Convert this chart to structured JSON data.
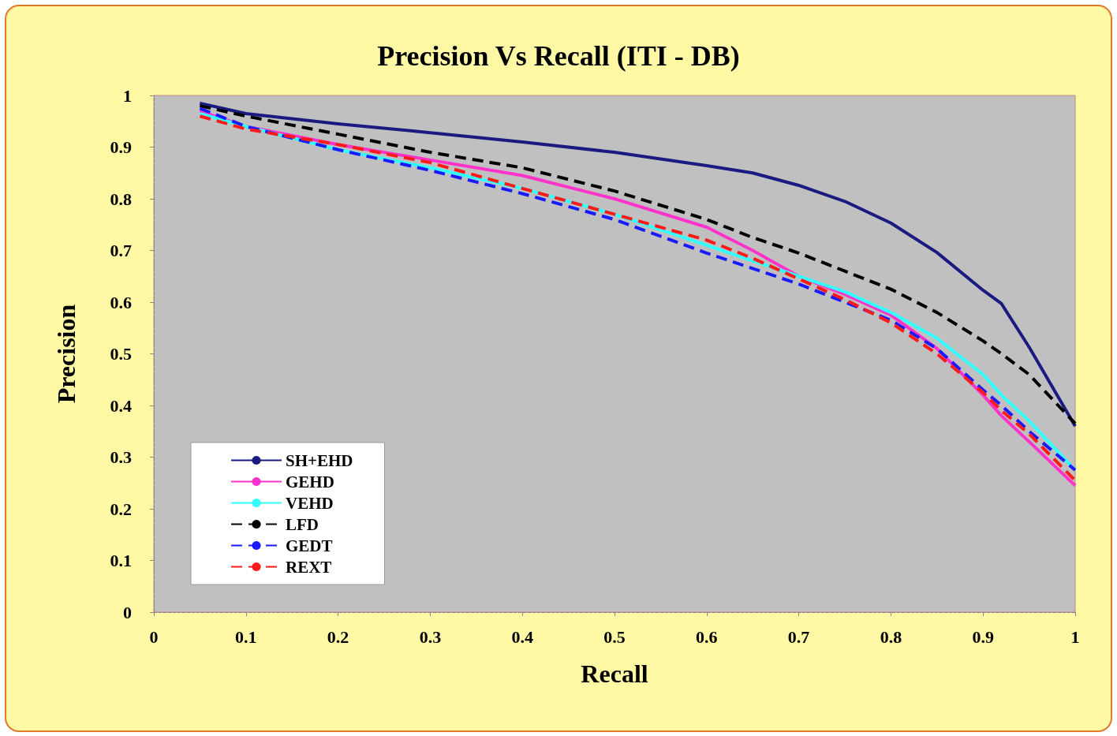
{
  "chart_data": {
    "type": "line",
    "title": "Precision Vs Recall (ITI - DB)",
    "xlabel": "Recall",
    "ylabel": "Precision",
    "x": [
      0.05,
      0.1,
      0.2,
      0.3,
      0.4,
      0.5,
      0.6,
      0.65,
      0.7,
      0.75,
      0.8,
      0.85,
      0.9,
      0.92,
      0.95,
      1.0
    ],
    "xlim": [
      0,
      1
    ],
    "xticks": [
      0,
      0.1,
      0.2,
      0.3,
      0.4,
      0.5,
      0.6,
      0.7,
      0.8,
      0.9,
      1
    ],
    "ylim": [
      0,
      1
    ],
    "yticks": [
      0,
      0.1,
      0.2,
      0.3,
      0.4,
      0.5,
      0.6,
      0.7,
      0.8,
      0.9,
      1
    ],
    "grid": false,
    "legend": "bottom left",
    "marker": "none",
    "series": [
      {
        "name": "SH+EHD",
        "color": "#1a1a80",
        "line_style": "solid",
        "values": [
          0.985,
          0.965,
          0.945,
          0.928,
          0.91,
          0.89,
          0.864,
          0.85,
          0.826,
          0.795,
          0.753,
          0.696,
          0.623,
          0.597,
          0.513,
          0.36
        ]
      },
      {
        "name": "GEHD",
        "color": "#ff33cc",
        "line_style": "solid",
        "values": [
          0.97,
          0.94,
          0.905,
          0.875,
          0.845,
          0.8,
          0.745,
          0.7,
          0.65,
          0.615,
          0.575,
          0.51,
          0.42,
          0.38,
          0.33,
          0.245
        ]
      },
      {
        "name": "VEHD",
        "color": "#33ffff",
        "line_style": "solid",
        "values": [
          0.965,
          0.94,
          0.895,
          0.86,
          0.82,
          0.77,
          0.71,
          0.68,
          0.65,
          0.62,
          0.58,
          0.53,
          0.46,
          0.42,
          0.37,
          0.275
        ]
      },
      {
        "name": "LFD",
        "color": "#000000",
        "line_style": "dashed",
        "values": [
          0.98,
          0.96,
          0.925,
          0.89,
          0.86,
          0.815,
          0.76,
          0.725,
          0.695,
          0.66,
          0.625,
          0.58,
          0.525,
          0.5,
          0.46,
          0.365
        ]
      },
      {
        "name": "GEDT",
        "color": "#1a1aff",
        "line_style": "dashed",
        "values": [
          0.975,
          0.94,
          0.895,
          0.855,
          0.81,
          0.76,
          0.695,
          0.665,
          0.635,
          0.6,
          0.565,
          0.51,
          0.43,
          0.4,
          0.35,
          0.275
        ]
      },
      {
        "name": "REXT",
        "color": "#ff1a1a",
        "line_style": "dashed",
        "values": [
          0.96,
          0.935,
          0.905,
          0.87,
          0.82,
          0.77,
          0.72,
          0.685,
          0.645,
          0.605,
          0.56,
          0.5,
          0.425,
          0.39,
          0.345,
          0.255
        ]
      }
    ]
  }
}
